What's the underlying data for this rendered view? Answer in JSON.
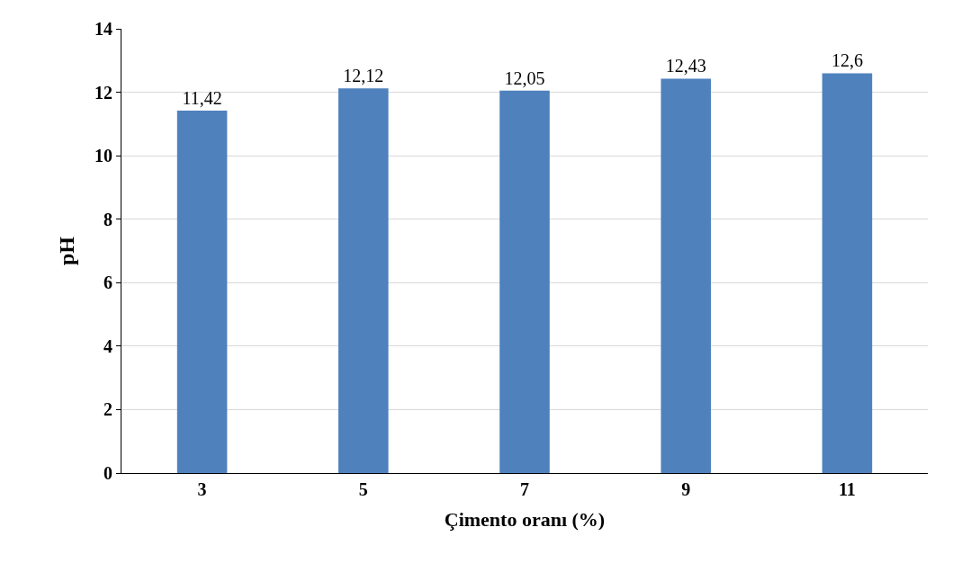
{
  "chart_data": {
    "type": "bar",
    "xlabel": "Çimento oranı (%)",
    "ylabel": "pH",
    "categories": [
      "3",
      "5",
      "7",
      "9",
      "11"
    ],
    "values": [
      11.42,
      12.12,
      12.05,
      12.43,
      12.6
    ],
    "value_labels": [
      "11,42",
      "12,12",
      "12,05",
      "12,43",
      "12,6"
    ],
    "color": "#4f81bd",
    "ylim": [
      0,
      14
    ],
    "yticks": [
      0,
      2,
      4,
      6,
      8,
      10,
      12,
      14
    ],
    "grid": "y",
    "legend": false
  }
}
